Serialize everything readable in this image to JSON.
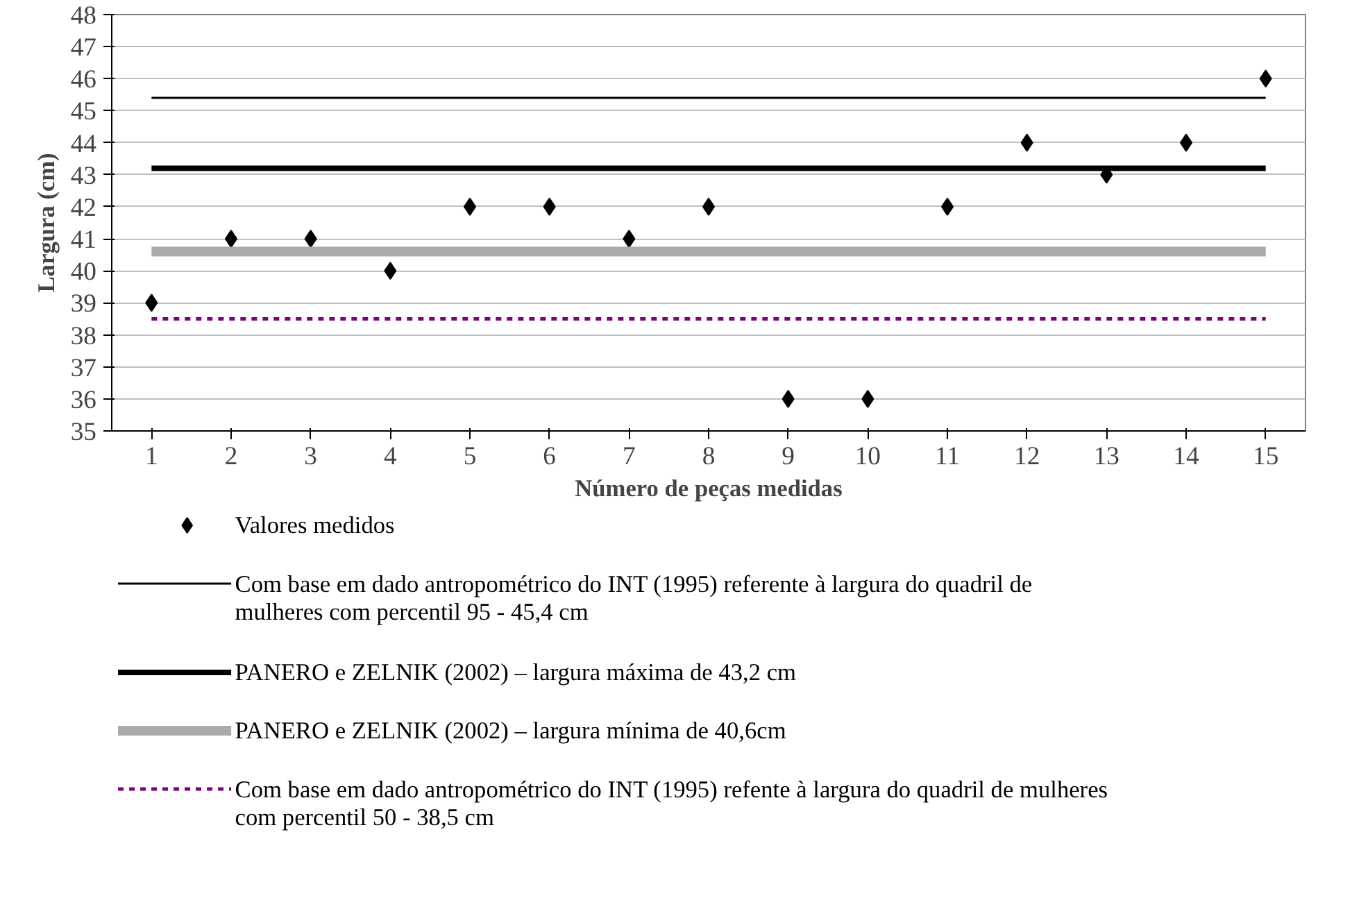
{
  "chart_data": {
    "type": "scatter",
    "xlabel": "Número de peças medidas",
    "ylabel": "Largura (cm)",
    "x": [
      1,
      2,
      3,
      4,
      5,
      6,
      7,
      8,
      9,
      10,
      11,
      12,
      13,
      14,
      15
    ],
    "series": [
      {
        "name": "Valores medidos",
        "color": "#000000",
        "marker": "diamond",
        "values": [
          39,
          41,
          41,
          40,
          42,
          42,
          41,
          42,
          36,
          36,
          42,
          44,
          43,
          44,
          46
        ]
      },
      {
        "type": "line",
        "name": "Com base em dado antropométrico do INT (1995) referente à largura do quadril de\nmulheres com percentil 95  - 45,4 cm",
        "color": "#000000",
        "line_style": "solid",
        "values": [
          45.4,
          45.4,
          45.4,
          45.4,
          45.4,
          45.4,
          45.4,
          45.4,
          45.4,
          45.4,
          45.4,
          45.4,
          45.4,
          45.4,
          45.4
        ]
      },
      {
        "type": "line",
        "name": "PANERO e ZELNIK (2002) –  largura máxima de  43,2 cm",
        "color": "#000000",
        "line_style": "solid",
        "values": [
          43.2,
          43.2,
          43.2,
          43.2,
          43.2,
          43.2,
          43.2,
          43.2,
          43.2,
          43.2,
          43.2,
          43.2,
          43.2,
          43.2,
          43.2
        ]
      },
      {
        "type": "line",
        "name": "PANERO e ZELNIK (2002) –  largura mínima  de 40,6cm",
        "color": "#aaaaaa",
        "line_style": "solid",
        "values": [
          40.6,
          40.6,
          40.6,
          40.6,
          40.6,
          40.6,
          40.6,
          40.6,
          40.6,
          40.6,
          40.6,
          40.6,
          40.6,
          40.6,
          40.6
        ]
      },
      {
        "type": "line",
        "name": "Com base em dado antropométrico do INT (1995) refente à largura do quadril de mulheres\ncom percentil 50  - 38,5 cm",
        "color": "#800080",
        "line_style": "dashed",
        "values": [
          38.5,
          38.5,
          38.5,
          38.5,
          38.5,
          38.5,
          38.5,
          38.5,
          38.5,
          38.5,
          38.5,
          38.5,
          38.5,
          38.5,
          38.5
        ]
      }
    ],
    "xlim": [
      0.5,
      15.5
    ],
    "xticks": [
      1,
      2,
      3,
      4,
      5,
      6,
      7,
      8,
      9,
      10,
      11,
      12,
      13,
      14,
      15
    ],
    "ylim": [
      35,
      48
    ],
    "yticks": [
      35,
      36,
      37,
      38,
      39,
      40,
      41,
      42,
      43,
      44,
      45,
      46,
      47,
      48
    ],
    "grid": "y",
    "legend": "bottom"
  }
}
